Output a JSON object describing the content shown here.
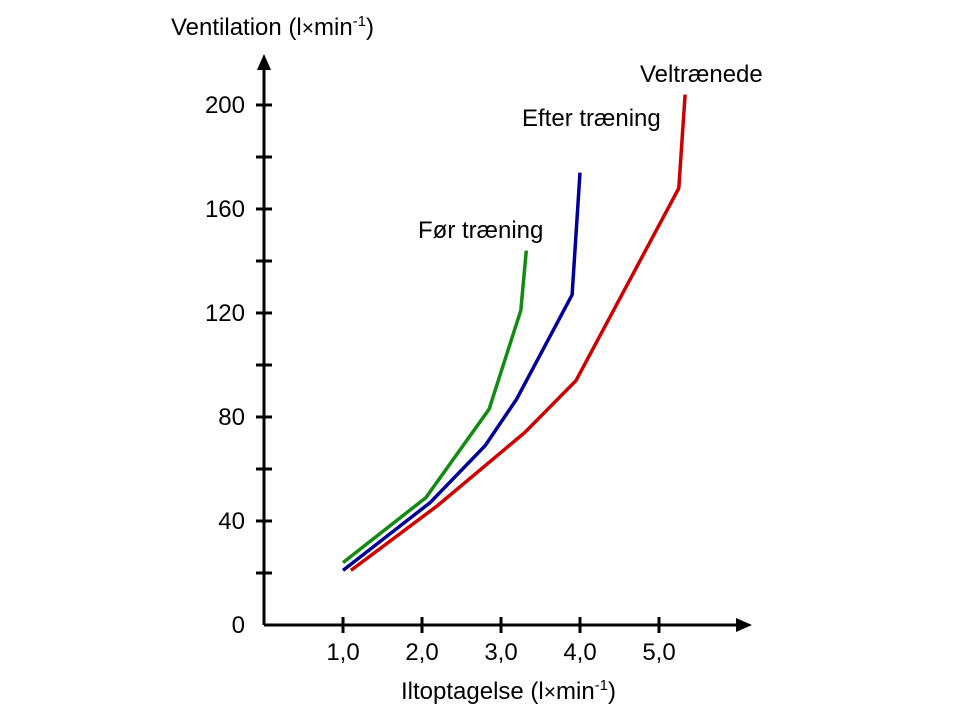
{
  "chart_data": {
    "type": "line",
    "xlabel": {
      "before": "Iltoptagelse (l",
      "operator": "×",
      "unit": "min",
      "superscript": "-1",
      "after": ")"
    },
    "ylabel": {
      "before": "Ventilation (l",
      "operator": "×",
      "unit": "min",
      "superscript": "-1",
      "after": ")"
    },
    "xlim": [
      0,
      6.0
    ],
    "ylim": [
      0,
      210
    ],
    "x_ticks": [
      {
        "value": 1.0,
        "label": "1,0"
      },
      {
        "value": 2.0,
        "label": "2,0"
      },
      {
        "value": 3.0,
        "label": "3,0"
      },
      {
        "value": 4.0,
        "label": "4,0"
      },
      {
        "value": 5.0,
        "label": "5,0"
      }
    ],
    "y_ticks": [
      {
        "value": 0,
        "label": "0"
      },
      {
        "value": 20,
        "label": ""
      },
      {
        "value": 40,
        "label": "40"
      },
      {
        "value": 60,
        "label": ""
      },
      {
        "value": 80,
        "label": "80"
      },
      {
        "value": 100,
        "label": ""
      },
      {
        "value": 120,
        "label": "120"
      },
      {
        "value": 140,
        "label": ""
      },
      {
        "value": 160,
        "label": "160"
      },
      {
        "value": 180,
        "label": ""
      },
      {
        "value": 200,
        "label": "200"
      }
    ],
    "grid": false,
    "legend": "none",
    "series": [
      {
        "name": "Før træning",
        "color": "#138a13",
        "points": [
          {
            "x": 1.0,
            "y": 24
          },
          {
            "x": 2.05,
            "y": 49
          },
          {
            "x": 2.85,
            "y": 83
          },
          {
            "x": 3.25,
            "y": 121
          },
          {
            "x": 3.32,
            "y": 144
          }
        ]
      },
      {
        "name": "Efter træning",
        "color": "#000099",
        "points": [
          {
            "x": 1.0,
            "y": 21
          },
          {
            "x": 2.1,
            "y": 47
          },
          {
            "x": 2.8,
            "y": 69
          },
          {
            "x": 3.2,
            "y": 87
          },
          {
            "x": 3.9,
            "y": 127
          },
          {
            "x": 4.0,
            "y": 174
          }
        ]
      },
      {
        "name": "Veltrænede",
        "color": "#cc0000",
        "points": [
          {
            "x": 1.1,
            "y": 21
          },
          {
            "x": 2.2,
            "y": 46
          },
          {
            "x": 3.3,
            "y": 74
          },
          {
            "x": 3.95,
            "y": 94
          },
          {
            "x": 5.25,
            "y": 168
          },
          {
            "x": 5.33,
            "y": 204
          }
        ]
      }
    ]
  }
}
